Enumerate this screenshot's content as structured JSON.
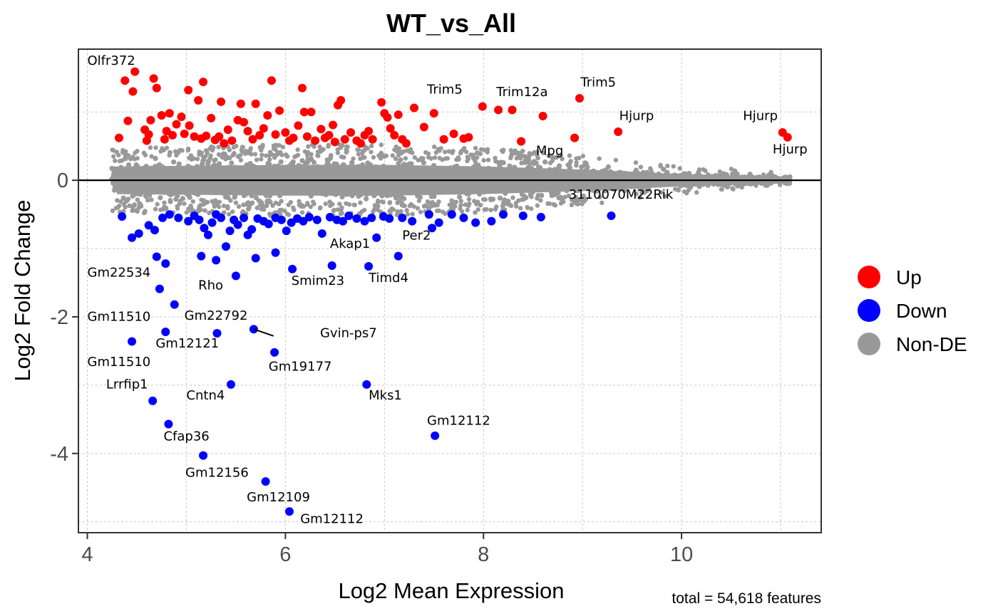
{
  "chart_data": {
    "type": "scatter",
    "title": "WT_vs_All",
    "xlabel": "Log2 Mean Expression",
    "ylabel": "Log2 Fold Change",
    "caption": "total = 54,618 features",
    "xlim": [
      3.91,
      11.41
    ],
    "ylim": [
      -5.16,
      1.92
    ],
    "x_ticks": [
      4,
      6,
      8,
      10
    ],
    "x_tick_labels": [
      "4",
      "6",
      "8",
      "10"
    ],
    "y_ticks": [
      0,
      -2,
      -4
    ],
    "y_tick_labels": [
      "0",
      "-2",
      "-4"
    ],
    "x_minor_grid": [
      5,
      7,
      9,
      11
    ],
    "y_minor_grid": [
      1,
      -1,
      -3,
      -5
    ],
    "grid": true,
    "hline": 0,
    "legend": {
      "position": "right",
      "entries": [
        {
          "label": "Up",
          "color": "#ff0000"
        },
        {
          "label": "Down",
          "color": "#0000ff"
        },
        {
          "label": "Non-DE",
          "color": "#999999"
        }
      ]
    },
    "colors": {
      "up": "#ff0000",
      "down": "#0000ff",
      "nonde": "#999999"
    },
    "nonde_band": {
      "description": "dense cloud of ~54,000 non-DE features around 0",
      "x_range": [
        4.25,
        11.1
      ],
      "upper_envelope": [
        [
          4.25,
          0.45
        ],
        [
          6,
          0.5
        ],
        [
          7,
          0.5
        ],
        [
          8,
          0.45
        ],
        [
          9,
          0.35
        ],
        [
          10,
          0.2
        ],
        [
          11,
          0.12
        ]
      ],
      "lower_envelope": [
        [
          4.25,
          -0.45
        ],
        [
          6,
          -0.5
        ],
        [
          7,
          -0.5
        ],
        [
          8,
          -0.45
        ],
        [
          9,
          -0.35
        ],
        [
          10,
          -0.2
        ],
        [
          11,
          -0.08
        ]
      ]
    },
    "series": [
      {
        "name": "Up",
        "points": [
          [
            4.32,
            0.62
          ],
          [
            4.38,
            1.46
          ],
          [
            4.41,
            0.87
          ],
          [
            4.48,
            1.59
          ],
          [
            4.46,
            1.3
          ],
          [
            4.58,
            0.74
          ],
          [
            4.6,
            0.58
          ],
          [
            4.62,
            0.67
          ],
          [
            4.64,
            0.88
          ],
          [
            4.67,
            1.49
          ],
          [
            4.7,
            1.35
          ],
          [
            4.75,
            0.95
          ],
          [
            4.78,
            0.6
          ],
          [
            4.8,
            0.72
          ],
          [
            4.83,
            0.98
          ],
          [
            4.86,
            0.66
          ],
          [
            4.9,
            0.82
          ],
          [
            4.95,
            0.93
          ],
          [
            4.98,
            0.68
          ],
          [
            5.02,
            1.32
          ],
          [
            5.03,
            0.8
          ],
          [
            5.08,
            0.64
          ],
          [
            5.12,
            1.17
          ],
          [
            5.15,
            0.61
          ],
          [
            5.17,
            1.44
          ],
          [
            5.2,
            0.65
          ],
          [
            5.25,
            0.91
          ],
          [
            5.29,
            0.59
          ],
          [
            5.33,
            0.64
          ],
          [
            5.35,
            1.15
          ],
          [
            5.38,
            0.54
          ],
          [
            5.42,
            0.74
          ],
          [
            5.46,
            0.58
          ],
          [
            5.52,
            0.88
          ],
          [
            5.55,
            1.12
          ],
          [
            5.58,
            0.85
          ],
          [
            5.62,
            0.72
          ],
          [
            5.67,
            0.6
          ],
          [
            5.7,
            1.12
          ],
          [
            5.74,
            0.66
          ],
          [
            5.78,
            0.76
          ],
          [
            5.82,
            0.95
          ],
          [
            5.86,
            1.46
          ],
          [
            5.9,
            0.67
          ],
          [
            5.94,
            1.02
          ],
          [
            6.0,
            0.7
          ],
          [
            6.04,
            0.58
          ],
          [
            6.08,
            0.62
          ],
          [
            6.13,
            0.8
          ],
          [
            6.17,
            1.35
          ],
          [
            6.19,
            1.0
          ],
          [
            6.22,
            0.64
          ],
          [
            6.26,
            1.0
          ],
          [
            6.3,
            0.58
          ],
          [
            6.36,
            0.75
          ],
          [
            6.4,
            0.62
          ],
          [
            6.44,
            0.66
          ],
          [
            6.48,
            0.81
          ],
          [
            6.5,
            0.56
          ],
          [
            6.53,
            1.1
          ],
          [
            6.56,
            1.17
          ],
          [
            6.6,
            0.6
          ],
          [
            6.66,
            0.7
          ],
          [
            6.72,
            0.58
          ],
          [
            6.76,
            0.54
          ],
          [
            6.8,
            0.66
          ],
          [
            6.84,
            0.72
          ],
          [
            6.88,
            0.6
          ],
          [
            6.97,
            1.14
          ],
          [
            7.0,
            0.98
          ],
          [
            7.03,
            0.92
          ],
          [
            7.06,
            0.76
          ],
          [
            7.1,
            0.66
          ],
          [
            7.14,
            0.96
          ],
          [
            7.18,
            0.6
          ],
          [
            7.22,
            0.54
          ],
          [
            7.3,
            1.06
          ],
          [
            7.4,
            0.78
          ],
          [
            7.5,
            0.98
          ],
          [
            7.6,
            0.6
          ],
          [
            7.7,
            0.68
          ],
          [
            7.8,
            0.61
          ],
          [
            7.85,
            0.63
          ],
          [
            7.99,
            1.08
          ],
          [
            8.15,
            1.03
          ],
          [
            8.29,
            1.03
          ],
          [
            8.38,
            0.57
          ],
          [
            8.6,
            0.94
          ],
          [
            8.92,
            0.62
          ],
          [
            8.97,
            1.2
          ],
          [
            9.36,
            0.71
          ],
          [
            11.02,
            0.7
          ],
          [
            11.07,
            0.63
          ]
        ]
      },
      {
        "name": "Down",
        "points": [
          [
            4.35,
            -0.53
          ],
          [
            4.45,
            -0.84
          ],
          [
            4.52,
            -0.78
          ],
          [
            4.62,
            -0.66
          ],
          [
            4.68,
            -0.73
          ],
          [
            4.76,
            -0.55
          ],
          [
            4.83,
            -0.5
          ],
          [
            4.92,
            -0.55
          ],
          [
            5.02,
            -0.6
          ],
          [
            5.08,
            -0.52
          ],
          [
            5.13,
            -0.58
          ],
          [
            5.18,
            -0.7
          ],
          [
            5.22,
            -0.8
          ],
          [
            5.26,
            -0.62
          ],
          [
            5.3,
            -0.5
          ],
          [
            5.35,
            -0.55
          ],
          [
            5.4,
            -0.97
          ],
          [
            5.44,
            -0.74
          ],
          [
            5.48,
            -0.58
          ],
          [
            5.52,
            -0.65
          ],
          [
            5.58,
            -0.55
          ],
          [
            5.62,
            -0.8
          ],
          [
            5.66,
            -0.72
          ],
          [
            5.72,
            -0.56
          ],
          [
            5.78,
            -0.6
          ],
          [
            5.83,
            -0.64
          ],
          [
            5.9,
            -0.55
          ],
          [
            5.96,
            -0.58
          ],
          [
            6.01,
            -0.74
          ],
          [
            6.06,
            -0.62
          ],
          [
            6.12,
            -0.56
          ],
          [
            6.18,
            -0.6
          ],
          [
            6.24,
            -0.54
          ],
          [
            6.32,
            -0.58
          ],
          [
            6.37,
            -0.78
          ],
          [
            6.45,
            -0.54
          ],
          [
            6.52,
            -0.58
          ],
          [
            6.58,
            -0.6
          ],
          [
            6.64,
            -0.52
          ],
          [
            6.72,
            -0.56
          ],
          [
            6.8,
            -0.6
          ],
          [
            6.87,
            -0.55
          ],
          [
            6.92,
            -0.84
          ],
          [
            6.99,
            -0.53
          ],
          [
            7.05,
            -0.56
          ],
          [
            7.18,
            -0.55
          ],
          [
            7.28,
            -0.6
          ],
          [
            7.45,
            -0.5
          ],
          [
            7.48,
            -0.7
          ],
          [
            7.55,
            -0.62
          ],
          [
            7.68,
            -0.5
          ],
          [
            7.8,
            -0.55
          ],
          [
            7.92,
            -0.62
          ],
          [
            8.08,
            -0.6
          ],
          [
            8.2,
            -0.5
          ],
          [
            8.4,
            -0.52
          ],
          [
            8.58,
            -0.54
          ],
          [
            9.29,
            -0.52
          ],
          [
            4.7,
            -1.12
          ],
          [
            5.15,
            -1.11
          ],
          [
            5.3,
            -1.17
          ],
          [
            5.9,
            -1.06
          ],
          [
            5.7,
            -1.14
          ],
          [
            7.14,
            -1.11
          ],
          [
            6.47,
            -1.25
          ],
          [
            6.84,
            -1.26
          ],
          [
            6.07,
            -1.3
          ],
          [
            5.5,
            -1.4
          ],
          [
            4.79,
            -1.22
          ],
          [
            4.73,
            -1.59
          ],
          [
            4.88,
            -1.82
          ],
          [
            4.79,
            -2.22
          ],
          [
            4.45,
            -2.36
          ],
          [
            5.31,
            -2.24
          ],
          [
            5.68,
            -2.18
          ],
          [
            5.89,
            -2.52
          ],
          [
            5.45,
            -2.99
          ],
          [
            6.82,
            -2.99
          ],
          [
            4.66,
            -3.23
          ],
          [
            4.82,
            -3.57
          ],
          [
            7.51,
            -3.74
          ],
          [
            5.17,
            -4.03
          ],
          [
            5.8,
            -4.41
          ],
          [
            6.04,
            -4.85
          ]
        ]
      }
    ],
    "annotations": [
      {
        "text": "Olfr372",
        "x": 4.0,
        "y": 1.69,
        "anchor": "start"
      },
      {
        "text": "Trim5",
        "x": 7.43,
        "y": 1.27,
        "anchor": "start"
      },
      {
        "text": "Trim12a",
        "x": 8.13,
        "y": 1.23,
        "anchor": "start"
      },
      {
        "text": "Trim5",
        "x": 8.98,
        "y": 1.37,
        "anchor": "start"
      },
      {
        "text": "Hjurp",
        "x": 9.37,
        "y": 0.88,
        "anchor": "start"
      },
      {
        "text": "Hjurp",
        "x": 10.62,
        "y": 0.88,
        "anchor": "start"
      },
      {
        "text": "Hjurp",
        "x": 10.92,
        "y": 0.39,
        "anchor": "start"
      },
      {
        "text": "Mpg",
        "x": 8.53,
        "y": 0.37,
        "anchor": "start"
      },
      {
        "text": "3110070M22Rik",
        "x": 8.86,
        "y": -0.27,
        "anchor": "start"
      },
      {
        "text": "Per2",
        "x": 7.18,
        "y": -0.87,
        "anchor": "start"
      },
      {
        "text": "Akap1",
        "x": 6.45,
        "y": -0.99,
        "anchor": "start"
      },
      {
        "text": "Timd4",
        "x": 6.84,
        "y": -1.49,
        "anchor": "start"
      },
      {
        "text": "Smim23",
        "x": 6.06,
        "y": -1.53,
        "anchor": "start"
      },
      {
        "text": "Rho",
        "x": 5.12,
        "y": -1.6,
        "anchor": "start"
      },
      {
        "text": "Gm22534",
        "x": 4.0,
        "y": -1.41,
        "anchor": "start"
      },
      {
        "text": "Gm11510",
        "x": 4.0,
        "y": -2.06,
        "anchor": "start"
      },
      {
        "text": "Gm22792",
        "x": 4.98,
        "y": -2.04,
        "anchor": "start"
      },
      {
        "text": "Gm12121",
        "x": 4.69,
        "y": -2.45,
        "anchor": "start"
      },
      {
        "text": "Gvin-ps7",
        "x": 6.35,
        "y": -2.3,
        "anchor": "start",
        "leader_to": [
          5.68,
          -2.18
        ],
        "leader_from": [
          5.88,
          -2.28
        ]
      },
      {
        "text": "Gm11510",
        "x": 4.0,
        "y": -2.72,
        "anchor": "start"
      },
      {
        "text": "Gm19177",
        "x": 5.83,
        "y": -2.79,
        "anchor": "start"
      },
      {
        "text": "Lrrfip1",
        "x": 4.19,
        "y": -3.05,
        "anchor": "start"
      },
      {
        "text": "Cntn4",
        "x": 5.0,
        "y": -3.21,
        "anchor": "start"
      },
      {
        "text": "Mks1",
        "x": 6.84,
        "y": -3.21,
        "anchor": "start"
      },
      {
        "text": "Gm12112",
        "x": 7.43,
        "y": -3.58,
        "anchor": "start"
      },
      {
        "text": "Cfap36",
        "x": 4.77,
        "y": -3.81,
        "anchor": "start"
      },
      {
        "text": "Gm12156",
        "x": 4.99,
        "y": -4.34,
        "anchor": "start"
      },
      {
        "text": "Gm12109",
        "x": 5.61,
        "y": -4.7,
        "anchor": "start"
      },
      {
        "text": "Gm12112",
        "x": 6.15,
        "y": -5.02,
        "anchor": "start"
      }
    ]
  }
}
